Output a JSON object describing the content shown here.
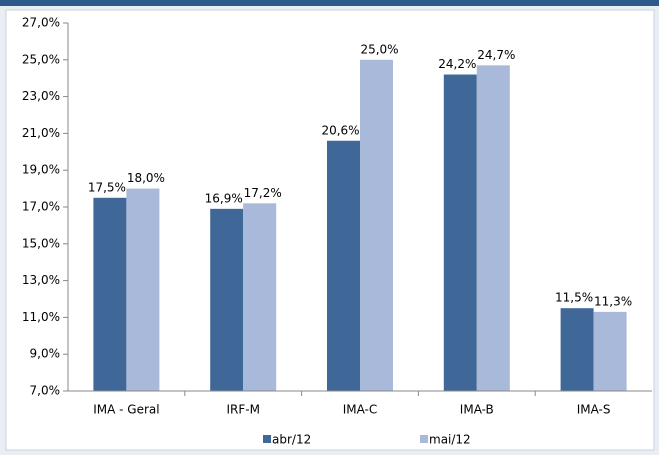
{
  "chart_data": {
    "type": "bar",
    "categories": [
      "IMA - Geral",
      "IRF-M",
      "IMA-C",
      "IMA-B",
      "IMA-S"
    ],
    "series": [
      {
        "name": "abr/12",
        "color": "#3f6797",
        "values": [
          17.5,
          16.9,
          20.6,
          24.2,
          11.5
        ],
        "value_labels": [
          "17,5%",
          "16,9%",
          "20,6%",
          "24,2%",
          "11,5%"
        ]
      },
      {
        "name": "mai/12",
        "color": "#a9b9d9",
        "values": [
          18.0,
          17.2,
          25.0,
          24.7,
          11.3
        ],
        "value_labels": [
          "18,0%",
          "17,2%",
          "25,0%",
          "24,7%",
          "11,3%"
        ]
      }
    ],
    "ylim": [
      7,
      27
    ],
    "yticks": [
      {
        "value": 7,
        "label": "7,0%"
      },
      {
        "value": 9,
        "label": "9,0%"
      },
      {
        "value": 11,
        "label": "11,0%"
      },
      {
        "value": 13,
        "label": "13,0%"
      },
      {
        "value": 15,
        "label": "15,0%"
      },
      {
        "value": 17,
        "label": "17,0%"
      },
      {
        "value": 19,
        "label": "19,0%"
      },
      {
        "value": 21,
        "label": "21,0%"
      },
      {
        "value": 23,
        "label": "23,0%"
      },
      {
        "value": 25,
        "label": "25,0%"
      },
      {
        "value": 27,
        "label": "27,0%"
      }
    ],
    "legend": "bottom"
  }
}
